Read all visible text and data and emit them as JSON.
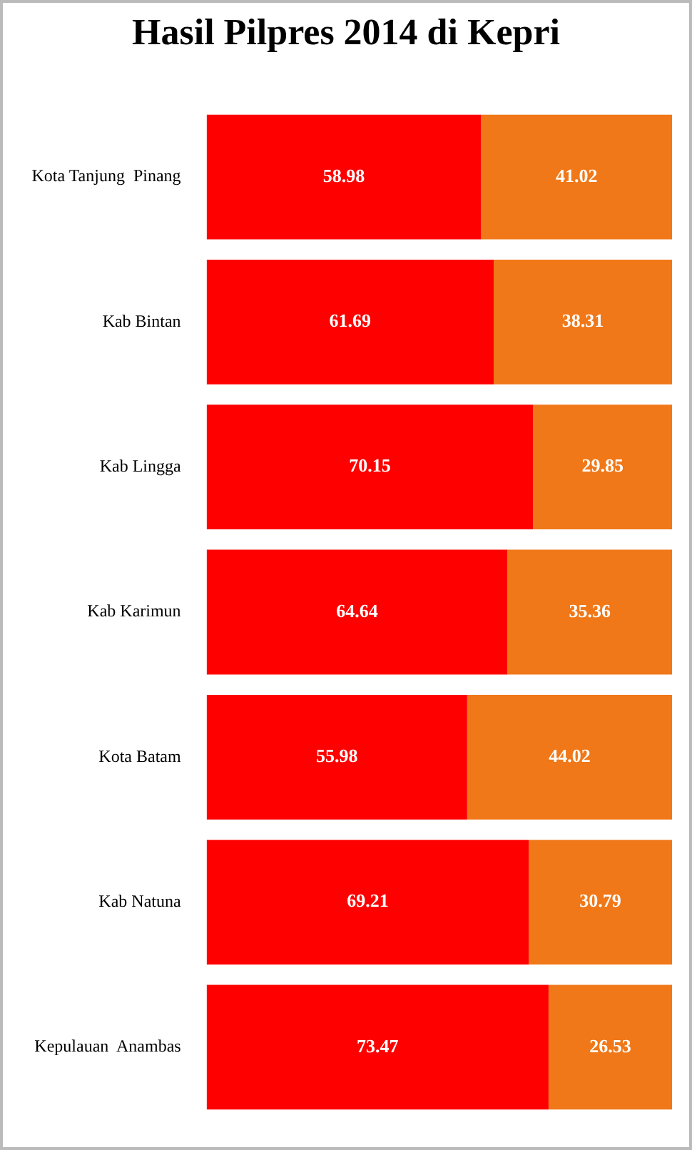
{
  "chart_data": {
    "type": "bar",
    "title": "Hasil Pilpres 2014 di Kepri",
    "orientation": "horizontal",
    "stacked": true,
    "categories": [
      "Kota Tanjung  Pinang",
      "Kab Bintan",
      "Kab Lingga",
      "Kab Karimun",
      "Kota Batam",
      "Kab Natuna",
      "Kepulauan  Anambas"
    ],
    "series": [
      {
        "color": "#ff0000",
        "values": [
          58.98,
          61.69,
          70.15,
          64.64,
          55.98,
          69.21,
          73.47
        ]
      },
      {
        "color": "#f07818",
        "values": [
          41.02,
          38.31,
          29.85,
          35.36,
          44.02,
          30.79,
          26.53
        ]
      }
    ],
    "xlim": [
      0,
      100
    ],
    "tick_labels": "y",
    "data_labels": true
  }
}
